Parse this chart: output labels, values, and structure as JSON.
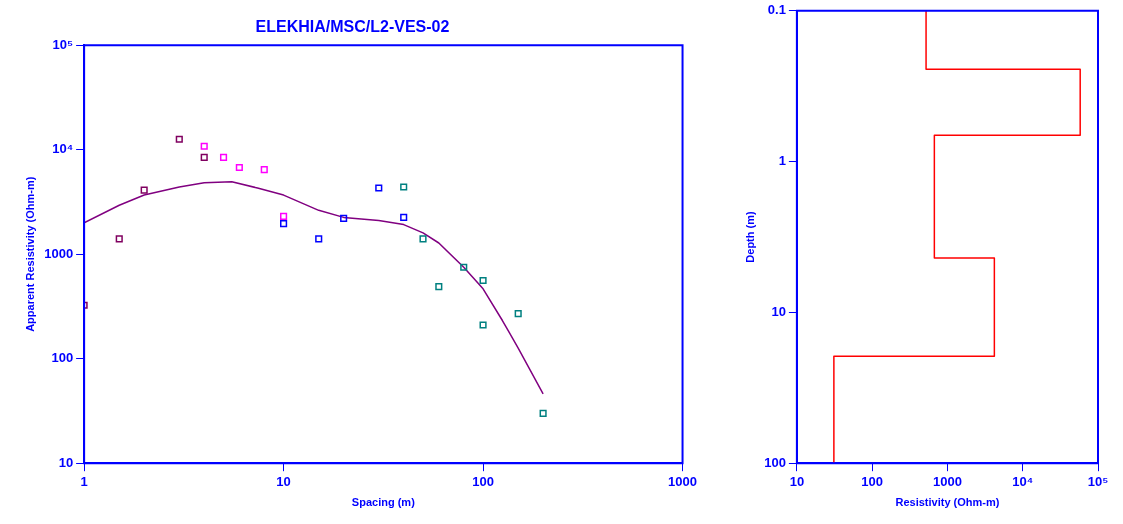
{
  "chart_data": [
    {
      "type": "scatter",
      "title": "ELEKHIA/MSC/L2-VES-02",
      "xlabel": "Spacing (m)",
      "ylabel": "Apparent Resistivity (Ohm-m)",
      "log": "xy",
      "grid": false,
      "legend": false,
      "marker": "square",
      "xlim": [
        1,
        1000
      ],
      "xticks": [
        1,
        10,
        100,
        1000
      ],
      "ylim": [
        10,
        100000
      ],
      "yticks": [
        10,
        100,
        1000,
        {
          "value": 10000,
          "label": "10⁴"
        },
        {
          "value": 100000,
          "label": "10⁵"
        }
      ],
      "series": [
        {
          "color": "#800060",
          "x": [
            1,
            1.5,
            2,
            3,
            4
          ],
          "values": [
            325,
            1400,
            4100,
            12600,
            8450
          ]
        },
        {
          "color": "#ff00ff",
          "x": [
            4,
            5,
            6,
            8,
            10
          ],
          "values": [
            10800,
            8450,
            6750,
            6450,
            2300
          ]
        },
        {
          "color": "#0000ff",
          "x": [
            10,
            15,
            20,
            30,
            40
          ],
          "values": [
            1960,
            1400,
            2200,
            4300,
            2250
          ]
        },
        {
          "color": "#008080",
          "x": [
            40,
            50,
            60,
            80,
            100,
            100,
            150,
            200
          ],
          "values": [
            4400,
            1400,
            490,
            750,
            560,
            210,
            270,
            30
          ]
        },
        {
          "type": "line",
          "marker": "none",
          "color": "#800080",
          "x": [
            1,
            1.5,
            2,
            3,
            4,
            5.5,
            7.4,
            10,
            15,
            20,
            30,
            40,
            50,
            60,
            80,
            100,
            125,
            150,
            200
          ],
          "values": [
            2000,
            2940,
            3680,
            4400,
            4820,
            4930,
            4300,
            3680,
            2630,
            2250,
            2100,
            1920,
            1600,
            1280,
            750,
            466,
            232,
            126,
            46
          ]
        }
      ]
    },
    {
      "type": "line",
      "xlabel": "Resistivity (Ohm-m)",
      "ylabel": "Depth (m)",
      "log": "xy",
      "grid": false,
      "legend": false,
      "marker": "none",
      "xlim": [
        10,
        100000
      ],
      "xticks": [
        10,
        100,
        1000,
        {
          "value": 10000,
          "label": "10⁴"
        },
        {
          "value": 100000,
          "label": "10⁵"
        }
      ],
      "ylim": [
        100,
        0.1
      ],
      "yticks": [
        0.1,
        1,
        10,
        100
      ],
      "series": [
        {
          "color": "#ff0000",
          "x": [
            520,
            520,
            58000,
            58000,
            670,
            670,
            4200,
            4200,
            31,
            31
          ],
          "values": [
            0.1,
            0.244,
            0.244,
            0.67,
            0.67,
            4.35,
            4.35,
            19.5,
            19.5,
            100
          ]
        }
      ]
    }
  ]
}
